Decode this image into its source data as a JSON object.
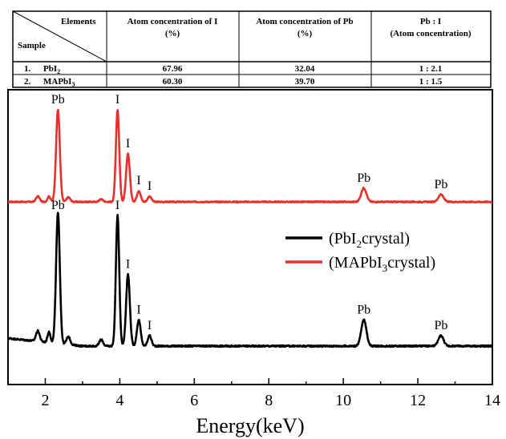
{
  "table": {
    "corner_top": "Elements",
    "corner_bottom": "Sample",
    "headers": [
      [
        "Atom concentration of I",
        "(%)"
      ],
      [
        "Atom concentration of Pb",
        "(%)"
      ],
      [
        "Pb : I",
        "(Atom concentration)"
      ]
    ],
    "rows": [
      {
        "num": "1.",
        "sample_base": "PbI",
        "sample_sub": "2",
        "sample_tail": "",
        "i": "67.96",
        "pb": "32.04",
        "ratio": "1 : 2.1"
      },
      {
        "num": "2.",
        "sample_base": "MAPbI",
        "sample_sub": "3",
        "sample_tail": "",
        "i": "60.30",
        "pb": "39.70",
        "ratio": "1 : 1.5"
      }
    ]
  },
  "chart_data": {
    "type": "line",
    "xlabel": "Energy(keV)",
    "ylabel": "",
    "xlim": [
      1,
      14
    ],
    "xticks": [
      "2",
      "4",
      "6",
      "8",
      "10",
      "12",
      "14"
    ],
    "grid": false,
    "legend_placement": "right",
    "legend": [
      {
        "base": "(PbI",
        "sub": "2",
        "tail": "crystal)",
        "color": "#000000"
      },
      {
        "base": "(MAPbI",
        "sub": "3",
        "tail": "crystal)",
        "color": "#e8302a"
      }
    ],
    "series": [
      {
        "color": "#e8302a",
        "baseline": 0,
        "noise": 0.012,
        "peaks": [
          [
            1.8,
            0.06,
            0.05
          ],
          [
            2.1,
            0.06,
            0.04
          ],
          [
            2.34,
            1.0,
            0.05
          ],
          [
            2.62,
            0.05,
            0.05
          ],
          [
            3.5,
            0.03,
            0.05
          ],
          [
            3.94,
            1.0,
            0.045
          ],
          [
            4.22,
            0.52,
            0.05
          ],
          [
            4.51,
            0.12,
            0.05
          ],
          [
            4.8,
            0.06,
            0.05
          ],
          [
            10.55,
            0.15,
            0.07
          ],
          [
            12.62,
            0.08,
            0.07
          ]
        ]
      },
      {
        "color": "#000000",
        "baseline": 0,
        "noise": 0.012,
        "peaks": [
          [
            1.8,
            0.08,
            0.05
          ],
          [
            2.1,
            0.08,
            0.04
          ],
          [
            2.34,
            1.0,
            0.05
          ],
          [
            2.62,
            0.06,
            0.05
          ],
          [
            3.5,
            0.05,
            0.05
          ],
          [
            3.94,
            1.0,
            0.045
          ],
          [
            4.22,
            0.55,
            0.05
          ],
          [
            4.51,
            0.2,
            0.05
          ],
          [
            4.8,
            0.08,
            0.05
          ],
          [
            10.55,
            0.2,
            0.07
          ],
          [
            12.62,
            0.08,
            0.07
          ]
        ]
      }
    ],
    "annotations": [
      {
        "text": "Pb",
        "x": 2.34,
        "series": 0
      },
      {
        "text": "I",
        "x": 3.94,
        "series": 0
      },
      {
        "text": "I",
        "x": 4.22,
        "series": 0
      },
      {
        "text": "I",
        "x": 4.51,
        "series": 0
      },
      {
        "text": "I",
        "x": 4.8,
        "series": 0
      },
      {
        "text": "Pb",
        "x": 10.55,
        "series": 0
      },
      {
        "text": "Pb",
        "x": 12.62,
        "series": 0
      },
      {
        "text": "Pb",
        "x": 2.34,
        "series": 1
      },
      {
        "text": "I",
        "x": 3.94,
        "series": 1
      },
      {
        "text": "I",
        "x": 4.22,
        "series": 1
      },
      {
        "text": "I",
        "x": 4.51,
        "series": 1
      },
      {
        "text": "I",
        "x": 4.8,
        "series": 1
      },
      {
        "text": "Pb",
        "x": 10.55,
        "series": 1
      },
      {
        "text": "Pb",
        "x": 12.62,
        "series": 1
      }
    ]
  }
}
